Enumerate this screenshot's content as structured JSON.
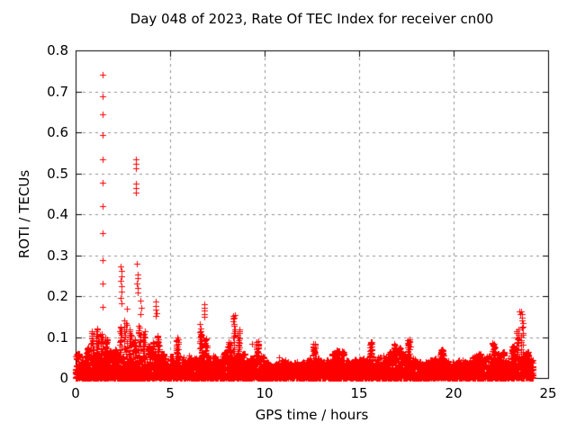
{
  "chart_data": {
    "type": "scatter",
    "title": "Day 048 of 2023, Rate Of TEC Index for receiver cn00",
    "xlabel": "GPS time / hours",
    "ylabel": "ROTI / TECUs",
    "xlim": [
      0,
      25
    ],
    "ylim": [
      0,
      0.8
    ],
    "xticks": [
      0,
      5,
      10,
      15,
      20,
      25
    ],
    "yticks": [
      0,
      0.1,
      0.2,
      0.3,
      0.4,
      0.5,
      0.6,
      0.7,
      0.8
    ],
    "grid": true,
    "legend": "none",
    "marker": "plus",
    "marker_size": 7,
    "colors": {
      "points": "#ff0000",
      "grid": "#909090",
      "axis": "#000000",
      "background": "#ffffff"
    },
    "x_data_end": 24.2,
    "band_envelope": [
      [
        0.0,
        0.06
      ],
      [
        0.25,
        0.055
      ],
      [
        0.5,
        0.075
      ],
      [
        0.75,
        0.115
      ],
      [
        1.0,
        0.125
      ],
      [
        1.25,
        0.11
      ],
      [
        1.5,
        0.1
      ],
      [
        1.75,
        0.065
      ],
      [
        2.0,
        0.07
      ],
      [
        2.25,
        0.13
      ],
      [
        2.5,
        0.145
      ],
      [
        2.75,
        0.12
      ],
      [
        3.0,
        0.095
      ],
      [
        3.25,
        0.13
      ],
      [
        3.5,
        0.115
      ],
      [
        3.75,
        0.08
      ],
      [
        4.0,
        0.09
      ],
      [
        4.25,
        0.105
      ],
      [
        4.5,
        0.06
      ],
      [
        4.75,
        0.035
      ],
      [
        5.0,
        0.055
      ],
      [
        5.25,
        0.1
      ],
      [
        5.5,
        0.055
      ],
      [
        5.75,
        0.045
      ],
      [
        6.0,
        0.055
      ],
      [
        6.25,
        0.05
      ],
      [
        6.5,
        0.115
      ],
      [
        6.75,
        0.1
      ],
      [
        7.0,
        0.05
      ],
      [
        7.25,
        0.055
      ],
      [
        7.5,
        0.045
      ],
      [
        7.75,
        0.065
      ],
      [
        8.0,
        0.09
      ],
      [
        8.25,
        0.155
      ],
      [
        8.5,
        0.12
      ],
      [
        8.75,
        0.06
      ],
      [
        9.0,
        0.045
      ],
      [
        9.25,
        0.05
      ],
      [
        9.5,
        0.09
      ],
      [
        9.75,
        0.055
      ],
      [
        10.0,
        0.04
      ],
      [
        10.25,
        0.03
      ],
      [
        10.5,
        0.035
      ],
      [
        10.75,
        0.05
      ],
      [
        11.0,
        0.045
      ],
      [
        11.25,
        0.035
      ],
      [
        11.5,
        0.04
      ],
      [
        11.75,
        0.035
      ],
      [
        12.0,
        0.04
      ],
      [
        12.25,
        0.055
      ],
      [
        12.5,
        0.085
      ],
      [
        12.75,
        0.05
      ],
      [
        13.0,
        0.04
      ],
      [
        13.25,
        0.045
      ],
      [
        13.5,
        0.06
      ],
      [
        13.75,
        0.07
      ],
      [
        14.0,
        0.065
      ],
      [
        14.25,
        0.045
      ],
      [
        14.5,
        0.04
      ],
      [
        14.75,
        0.05
      ],
      [
        15.0,
        0.05
      ],
      [
        15.25,
        0.045
      ],
      [
        15.5,
        0.09
      ],
      [
        15.75,
        0.055
      ],
      [
        16.0,
        0.05
      ],
      [
        16.25,
        0.055
      ],
      [
        16.5,
        0.065
      ],
      [
        16.75,
        0.085
      ],
      [
        17.0,
        0.075
      ],
      [
        17.25,
        0.06
      ],
      [
        17.5,
        0.095
      ],
      [
        17.75,
        0.05
      ],
      [
        18.0,
        0.04
      ],
      [
        18.25,
        0.035
      ],
      [
        18.5,
        0.04
      ],
      [
        18.75,
        0.045
      ],
      [
        19.0,
        0.05
      ],
      [
        19.25,
        0.07
      ],
      [
        19.5,
        0.045
      ],
      [
        19.75,
        0.04
      ],
      [
        20.0,
        0.04
      ],
      [
        20.25,
        0.045
      ],
      [
        20.5,
        0.04
      ],
      [
        20.75,
        0.045
      ],
      [
        21.0,
        0.055
      ],
      [
        21.25,
        0.06
      ],
      [
        21.5,
        0.05
      ],
      [
        21.75,
        0.055
      ],
      [
        22.0,
        0.085
      ],
      [
        22.25,
        0.06
      ],
      [
        22.5,
        0.065
      ],
      [
        22.75,
        0.05
      ],
      [
        23.0,
        0.08
      ],
      [
        23.25,
        0.12
      ],
      [
        23.5,
        0.165
      ],
      [
        23.75,
        0.065
      ],
      [
        24.0,
        0.05
      ]
    ],
    "outliers": [
      [
        1.45,
        0.74
      ],
      [
        1.45,
        0.687
      ],
      [
        1.44,
        0.645
      ],
      [
        1.45,
        0.593
      ],
      [
        1.44,
        0.535
      ],
      [
        1.45,
        0.478
      ],
      [
        1.45,
        0.419
      ],
      [
        1.44,
        0.353
      ],
      [
        1.45,
        0.287
      ],
      [
        1.44,
        0.231
      ],
      [
        1.45,
        0.173
      ],
      [
        3.17,
        0.535
      ],
      [
        3.19,
        0.524
      ],
      [
        3.18,
        0.512
      ],
      [
        3.17,
        0.474
      ],
      [
        3.19,
        0.463
      ],
      [
        3.18,
        0.452
      ],
      [
        2.4,
        0.272
      ],
      [
        2.42,
        0.262
      ],
      [
        2.41,
        0.249
      ],
      [
        2.4,
        0.237
      ],
      [
        2.42,
        0.225
      ],
      [
        2.41,
        0.211
      ],
      [
        2.4,
        0.196
      ],
      [
        2.42,
        0.182
      ],
      [
        3.26,
        0.279
      ],
      [
        3.28,
        0.252
      ],
      [
        3.27,
        0.243
      ],
      [
        3.26,
        0.231
      ],
      [
        3.28,
        0.219
      ],
      [
        3.27,
        0.208
      ],
      [
        3.44,
        0.19
      ],
      [
        3.46,
        0.172
      ],
      [
        3.45,
        0.156
      ],
      [
        4.22,
        0.186
      ],
      [
        4.26,
        0.176
      ],
      [
        4.24,
        0.166
      ],
      [
        4.27,
        0.158
      ],
      [
        4.23,
        0.151
      ],
      [
        2.7,
        0.17
      ],
      [
        6.79,
        0.181
      ],
      [
        6.81,
        0.172
      ],
      [
        6.8,
        0.164
      ],
      [
        6.79,
        0.156
      ],
      [
        6.81,
        0.149
      ],
      [
        6.58,
        0.131
      ],
      [
        6.6,
        0.121
      ],
      [
        6.59,
        0.112
      ],
      [
        6.61,
        0.102
      ],
      [
        6.6,
        0.094
      ],
      [
        8.32,
        0.152
      ],
      [
        8.34,
        0.146
      ],
      [
        9.33,
        0.084
      ],
      [
        15.62,
        0.088
      ],
      [
        17.55,
        0.093
      ],
      [
        22.04,
        0.085
      ],
      [
        23.48,
        0.163
      ],
      [
        23.52,
        0.157
      ]
    ]
  }
}
